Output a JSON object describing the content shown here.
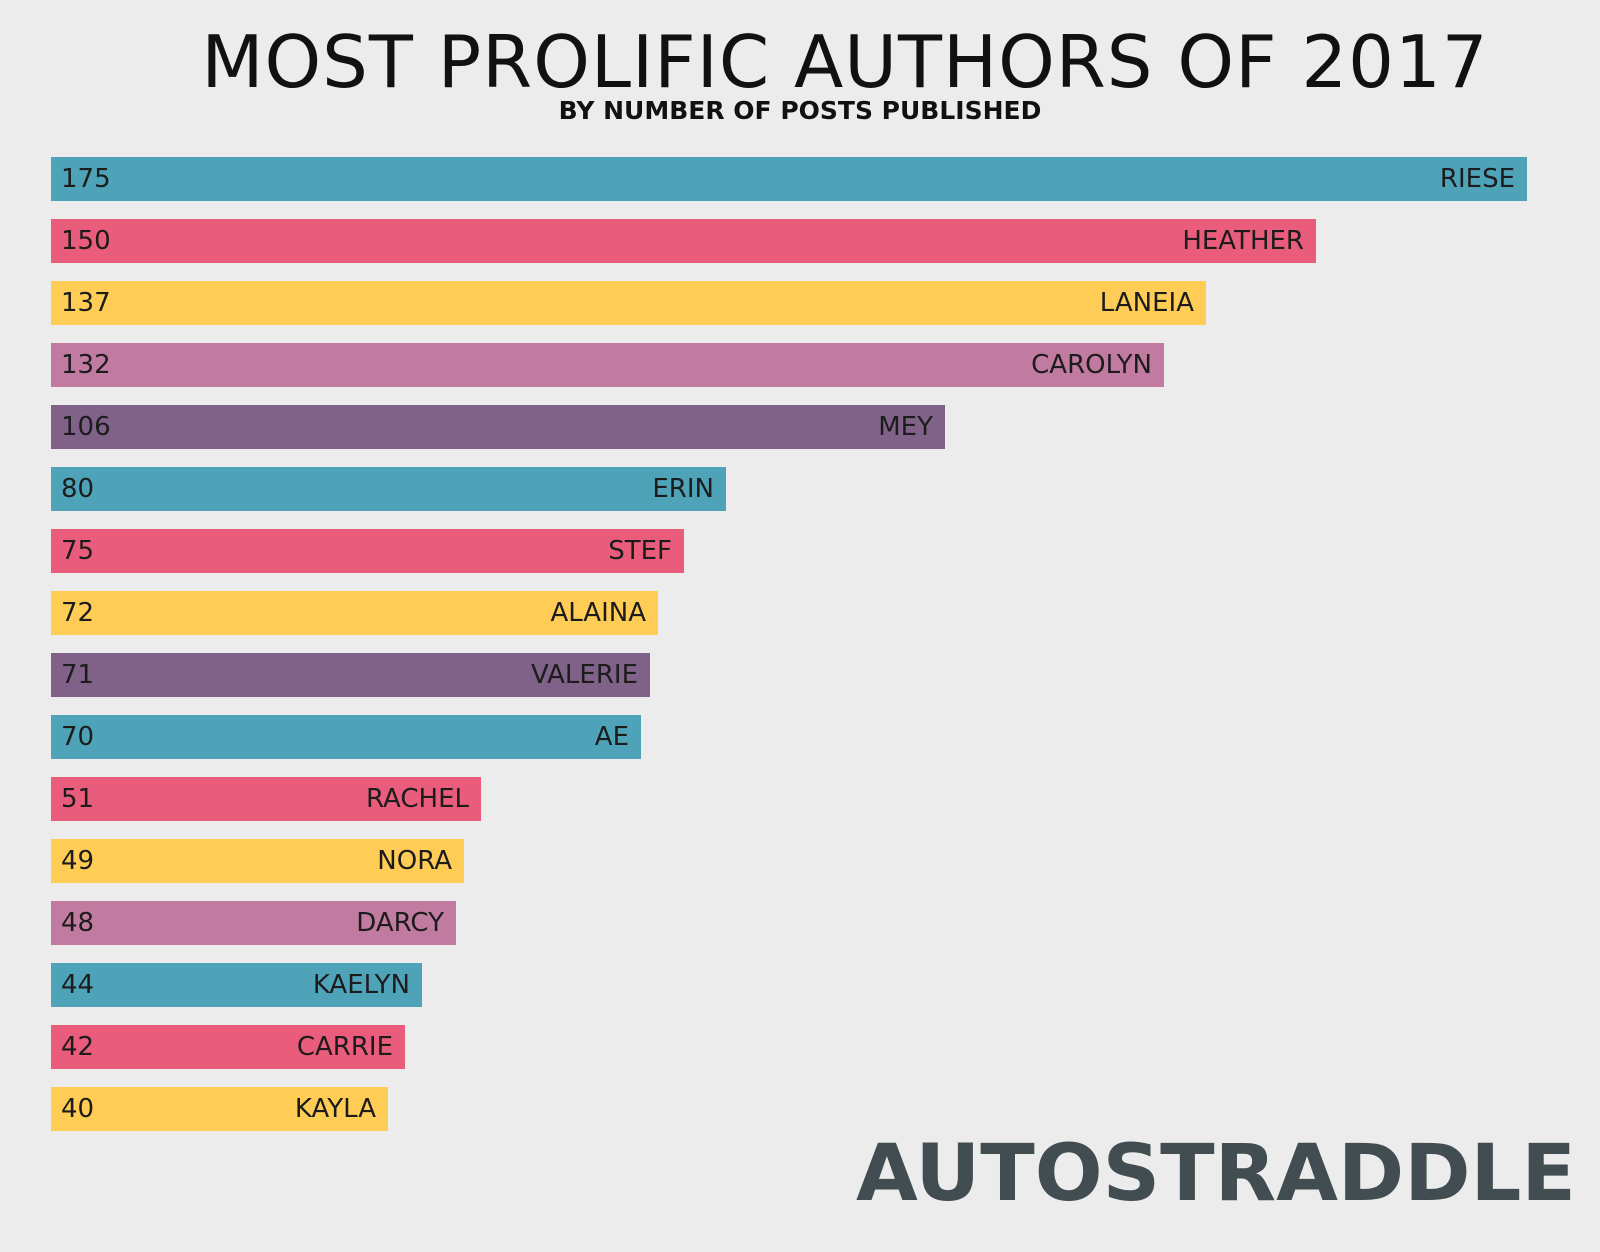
{
  "chart_data": {
    "type": "bar",
    "orientation": "horizontal",
    "title": "MOST PROLIFIC AUTHORS OF 2017",
    "subtitle": "BY NUMBER OF POSTS PUBLISHED",
    "categories": [
      "RIESE",
      "HEATHER",
      "LANEIA",
      "CAROLYN",
      "MEY",
      "ERIN",
      "STEF",
      "ALAINA",
      "VALERIE",
      "AE",
      "RACHEL",
      "NORA",
      "DARCY",
      "KAELYN",
      "CARRIE",
      "KAYLA"
    ],
    "values": [
      175,
      150,
      137,
      132,
      106,
      80,
      75,
      72,
      71,
      70,
      51,
      49,
      48,
      44,
      42,
      40
    ],
    "bar_colors": [
      "#4fa3b9",
      "#e95c7b",
      "#ffcc55",
      "#c27ba0",
      "#806289",
      "#4fa3b9",
      "#e95c7b",
      "#ffcc55",
      "#806289",
      "#4fa3b9",
      "#e95c7b",
      "#ffcc55",
      "#c27ba0",
      "#4fa3b9",
      "#e95c7b",
      "#ffcc55"
    ],
    "xlim": [
      0,
      175
    ],
    "grid": false,
    "legend": "none"
  },
  "logo": {
    "text": "AUTOSTRADDLE",
    "color": "#414d50"
  },
  "background_color": "#ececec"
}
